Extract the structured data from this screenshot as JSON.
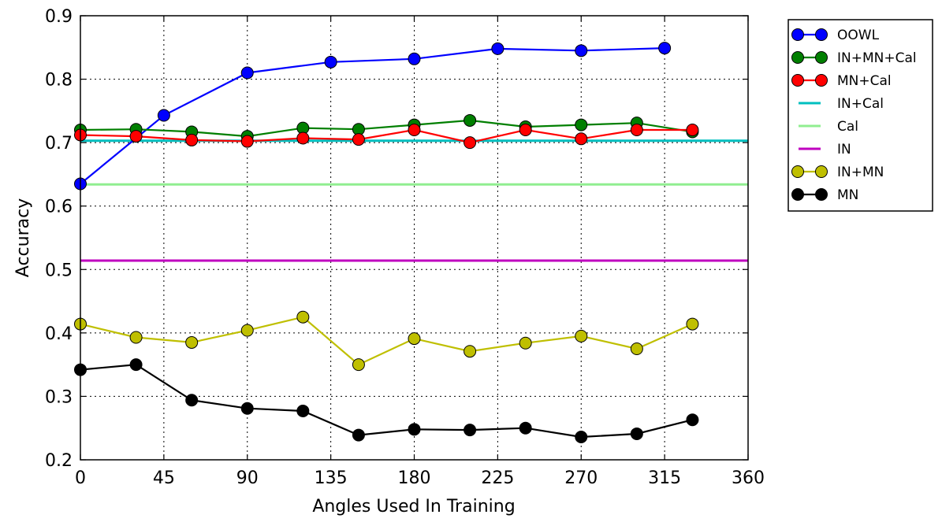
{
  "chart_data": {
    "type": "line",
    "title": "",
    "xlabel": "Angles Used In Training",
    "ylabel": "Accuracy",
    "xlim": [
      0,
      360
    ],
    "ylim": [
      0.2,
      0.9
    ],
    "xticks": [
      0,
      45,
      90,
      135,
      180,
      225,
      270,
      315,
      360
    ],
    "yticks": [
      0.2,
      0.3,
      0.4,
      0.5,
      0.6,
      0.7,
      0.8,
      0.9
    ],
    "xtick_labels": [
      "0",
      "45",
      "90",
      "135",
      "180",
      "225",
      "270",
      "315",
      "360"
    ],
    "ytick_labels": [
      "0.2",
      "0.3",
      "0.4",
      "0.5",
      "0.6",
      "0.7",
      "0.8",
      "0.9"
    ],
    "grid": true,
    "legend_position": "outside-top-right",
    "series": [
      {
        "name": "OOWL",
        "color": "#0000ff",
        "markers": true,
        "x": [
          0,
          45,
          90,
          135,
          180,
          225,
          270,
          315
        ],
        "y": [
          0.635,
          0.743,
          0.81,
          0.827,
          0.832,
          0.848,
          0.845,
          0.849
        ]
      },
      {
        "name": "IN+MN+Cal",
        "color": "#007f00",
        "markers": true,
        "x": [
          0,
          30,
          60,
          90,
          120,
          150,
          180,
          210,
          240,
          270,
          300,
          330
        ],
        "y": [
          0.72,
          0.721,
          0.717,
          0.71,
          0.723,
          0.721,
          0.728,
          0.735,
          0.725,
          0.728,
          0.731,
          0.717
        ]
      },
      {
        "name": "MN+Cal",
        "color": "#ff0000",
        "markers": true,
        "x": [
          0,
          30,
          60,
          90,
          120,
          150,
          180,
          210,
          240,
          270,
          300,
          330
        ],
        "y": [
          0.712,
          0.71,
          0.704,
          0.702,
          0.707,
          0.705,
          0.72,
          0.7,
          0.72,
          0.706,
          0.72,
          0.72
        ]
      },
      {
        "name": "IN+Cal",
        "color": "#00bfbf",
        "markers": false,
        "x": [
          0,
          360
        ],
        "y": [
          0.703,
          0.703
        ]
      },
      {
        "name": "Cal",
        "color": "#90ee90",
        "markers": false,
        "x": [
          0,
          360
        ],
        "y": [
          0.634,
          0.634
        ]
      },
      {
        "name": "IN",
        "color": "#bf00bf",
        "markers": false,
        "x": [
          0,
          360
        ],
        "y": [
          0.514,
          0.514
        ]
      },
      {
        "name": "IN+MN",
        "color": "#bfbf00",
        "markers": true,
        "x": [
          0,
          30,
          60,
          90,
          120,
          150,
          180,
          210,
          240,
          270,
          300,
          330
        ],
        "y": [
          0.414,
          0.393,
          0.385,
          0.404,
          0.425,
          0.35,
          0.391,
          0.371,
          0.384,
          0.395,
          0.375,
          0.414
        ]
      },
      {
        "name": "MN",
        "color": "#000000",
        "markers": true,
        "x": [
          0,
          30,
          60,
          90,
          120,
          150,
          180,
          210,
          240,
          270,
          300,
          330
        ],
        "y": [
          0.342,
          0.35,
          0.294,
          0.281,
          0.277,
          0.239,
          0.248,
          0.247,
          0.25,
          0.236,
          0.241,
          0.263
        ]
      }
    ]
  }
}
